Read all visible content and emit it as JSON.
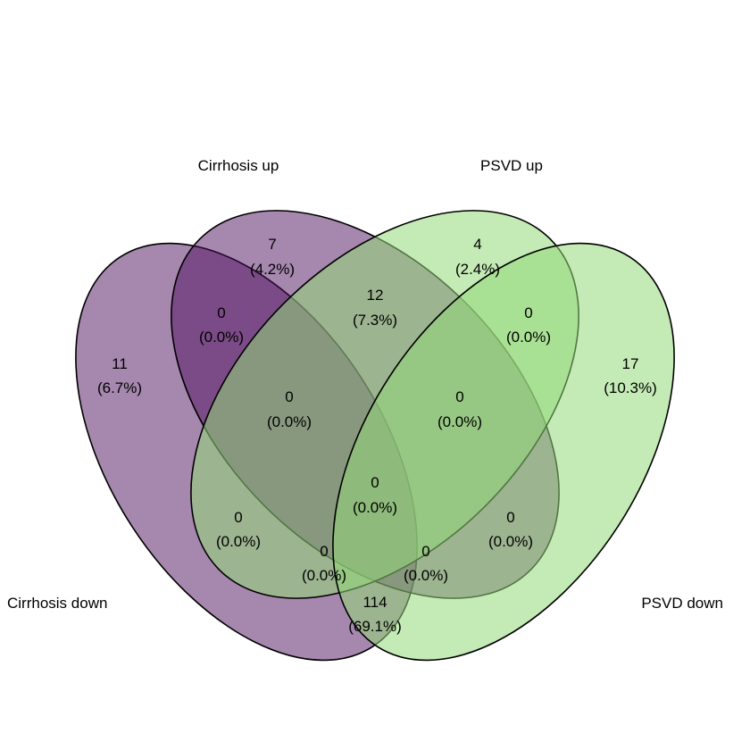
{
  "diagram": {
    "type": "venn-4-sets",
    "colors": {
      "cirrhosis_down": "#4d0f5e",
      "cirrhosis_up": "#4d0f5e",
      "psvd_up": "#93d978",
      "psvd_down": "#93d978",
      "outline": "#000000"
    },
    "set_labels": {
      "cirrhosis_up": "Cirrhosis up",
      "psvd_up": "PSVD up",
      "cirrhosis_down": "Cirrhosis down",
      "psvd_down": "PSVD down"
    },
    "regions": {
      "cirrhosis_up_only": {
        "count": "7",
        "pct": "(4.2%)"
      },
      "psvd_up_only": {
        "count": "4",
        "pct": "(2.4%)"
      },
      "cirrhosis_down_only": {
        "count": "11",
        "pct": "(6.7%)"
      },
      "psvd_down_only": {
        "count": "17",
        "pct": "(10.3%)"
      },
      "cirrhosis_up_and_psvd_up": {
        "count": "12",
        "pct": "(7.3%)"
      },
      "cirrhosis_down_and_cirrhosis_up": {
        "count": "0",
        "pct": "(0.0%)"
      },
      "psvd_up_and_psvd_down": {
        "count": "0",
        "pct": "(0.0%)"
      },
      "cirrhosis_down_cirrhosis_up_psvd_up": {
        "count": "0",
        "pct": "(0.0%)"
      },
      "cirrhosis_up_psvd_up_psvd_down": {
        "count": "0",
        "pct": "(0.0%)"
      },
      "all_four": {
        "count": "0",
        "pct": "(0.0%)"
      },
      "cirrhosis_down_and_psvd_up": {
        "count": "0",
        "pct": "(0.0%)"
      },
      "cirrhosis_up_and_psvd_down": {
        "count": "0",
        "pct": "(0.0%)"
      },
      "cirrhosis_down_cirrhosis_up_psvd_down": {
        "count": "0",
        "pct": "(0.0%)"
      },
      "cirrhosis_down_psvd_up_psvd_down": {
        "count": "0",
        "pct": "(0.0%)"
      },
      "cirrhosis_down_and_psvd_down": {
        "count": "114",
        "pct": "(69.1%)"
      }
    }
  }
}
